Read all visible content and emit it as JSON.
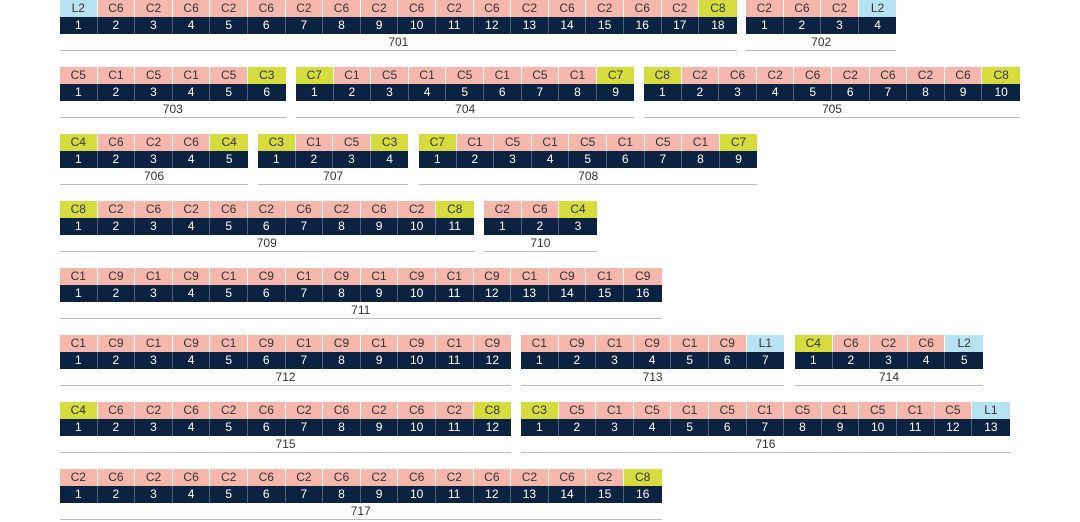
{
  "colors": {
    "C": "#f5b7ac",
    "Y": "#d6dc3d",
    "B": "#b7e2f1",
    "index_bg": "#0b2240"
  },
  "groups": [
    {
      "label": "701",
      "cells": [
        "L2",
        "C6",
        "C2",
        "C6",
        "C2",
        "C6",
        "C2",
        "C6",
        "C2",
        "C6",
        "C2",
        "C6",
        "C2",
        "C6",
        "C2",
        "C6",
        "C2",
        "C8"
      ],
      "types": [
        "B",
        "C",
        "C",
        "C",
        "C",
        "C",
        "C",
        "C",
        "C",
        "C",
        "C",
        "C",
        "C",
        "C",
        "C",
        "C",
        "C",
        "Y"
      ],
      "indices": [
        "1",
        "2",
        "3",
        "4",
        "5",
        "6",
        "7",
        "8",
        "9",
        "10",
        "11",
        "12",
        "13",
        "14",
        "15",
        "16",
        "17",
        "18"
      ]
    },
    {
      "label": "702",
      "cells": [
        "C2",
        "C6",
        "C2",
        "L2"
      ],
      "types": [
        "C",
        "C",
        "C",
        "B"
      ],
      "indices": [
        "1",
        "2",
        "3",
        "4"
      ]
    },
    {
      "label": "703",
      "cells": [
        "C5",
        "C1",
        "C5",
        "C1",
        "C5",
        "C3"
      ],
      "types": [
        "C",
        "C",
        "C",
        "C",
        "C",
        "Y"
      ],
      "indices": [
        "1",
        "2",
        "3",
        "4",
        "5",
        "6"
      ]
    },
    {
      "label": "704",
      "cells": [
        "C7",
        "C1",
        "C5",
        "C1",
        "C5",
        "C1",
        "C5",
        "C1",
        "C7"
      ],
      "types": [
        "Y",
        "C",
        "C",
        "C",
        "C",
        "C",
        "C",
        "C",
        "Y"
      ],
      "indices": [
        "1",
        "2",
        "3",
        "4",
        "5",
        "6",
        "7",
        "8",
        "9"
      ]
    },
    {
      "label": "705",
      "cells": [
        "C8",
        "C2",
        "C6",
        "C2",
        "C6",
        "C2",
        "C6",
        "C2",
        "C6",
        "C8"
      ],
      "types": [
        "Y",
        "C",
        "C",
        "C",
        "C",
        "C",
        "C",
        "C",
        "C",
        "Y"
      ],
      "indices": [
        "1",
        "2",
        "3",
        "4",
        "5",
        "6",
        "7",
        "8",
        "9",
        "10"
      ]
    },
    {
      "label": "706",
      "cells": [
        "C4",
        "C6",
        "C2",
        "C6",
        "C4"
      ],
      "types": [
        "Y",
        "C",
        "C",
        "C",
        "Y"
      ],
      "indices": [
        "1",
        "2",
        "3",
        "4",
        "5"
      ]
    },
    {
      "label": "707",
      "cells": [
        "C3",
        "C1",
        "C5",
        "C3"
      ],
      "types": [
        "Y",
        "C",
        "C",
        "Y"
      ],
      "indices": [
        "1",
        "2",
        "3",
        "4"
      ]
    },
    {
      "label": "708",
      "cells": [
        "C7",
        "C1",
        "C5",
        "C1",
        "C5",
        "C1",
        "C5",
        "C1",
        "C7"
      ],
      "types": [
        "Y",
        "C",
        "C",
        "C",
        "C",
        "C",
        "C",
        "C",
        "Y"
      ],
      "indices": [
        "1",
        "2",
        "3",
        "4",
        "5",
        "6",
        "7",
        "8",
        "9"
      ]
    },
    {
      "label": "709",
      "cells": [
        "C8",
        "C2",
        "C6",
        "C2",
        "C6",
        "C2",
        "C6",
        "C2",
        "C6",
        "C2",
        "C8"
      ],
      "types": [
        "Y",
        "C",
        "C",
        "C",
        "C",
        "C",
        "C",
        "C",
        "C",
        "C",
        "Y"
      ],
      "indices": [
        "1",
        "2",
        "3",
        "4",
        "5",
        "6",
        "7",
        "8",
        "9",
        "10",
        "11"
      ]
    },
    {
      "label": "710",
      "cells": [
        "C2",
        "C6",
        "C4"
      ],
      "types": [
        "C",
        "C",
        "Y"
      ],
      "indices": [
        "1",
        "2",
        "3"
      ]
    },
    {
      "label": "711",
      "cells": [
        "C1",
        "C9",
        "C1",
        "C9",
        "C1",
        "C9",
        "C1",
        "C9",
        "C1",
        "C9",
        "C1",
        "C9",
        "C1",
        "C9",
        "C1",
        "C9"
      ],
      "types": [
        "C",
        "C",
        "C",
        "C",
        "C",
        "C",
        "C",
        "C",
        "C",
        "C",
        "C",
        "C",
        "C",
        "C",
        "C",
        "C"
      ],
      "indices": [
        "1",
        "2",
        "3",
        "4",
        "5",
        "6",
        "7",
        "8",
        "9",
        "10",
        "11",
        "12",
        "13",
        "14",
        "15",
        "16"
      ]
    },
    {
      "label": "712",
      "cells": [
        "C1",
        "C9",
        "C1",
        "C9",
        "C1",
        "C9",
        "C1",
        "C9",
        "C1",
        "C9",
        "C1",
        "C9"
      ],
      "types": [
        "C",
        "C",
        "C",
        "C",
        "C",
        "C",
        "C",
        "C",
        "C",
        "C",
        "C",
        "C"
      ],
      "indices": [
        "1",
        "2",
        "3",
        "4",
        "5",
        "6",
        "7",
        "8",
        "9",
        "10",
        "11",
        "12"
      ]
    },
    {
      "label": "713",
      "cells": [
        "C1",
        "C9",
        "C1",
        "C9",
        "C1",
        "C9",
        "L1"
      ],
      "types": [
        "C",
        "C",
        "C",
        "C",
        "C",
        "C",
        "B"
      ],
      "indices": [
        "1",
        "2",
        "3",
        "4",
        "5",
        "6",
        "7"
      ]
    },
    {
      "label": "714",
      "cells": [
        "C4",
        "C6",
        "C2",
        "C6",
        "L2"
      ],
      "types": [
        "Y",
        "C",
        "C",
        "C",
        "B"
      ],
      "indices": [
        "1",
        "2",
        "3",
        "4",
        "5"
      ]
    },
    {
      "label": "715",
      "cells": [
        "C4",
        "C6",
        "C2",
        "C6",
        "C2",
        "C6",
        "C2",
        "C6",
        "C2",
        "C6",
        "C2",
        "C8"
      ],
      "types": [
        "Y",
        "C",
        "C",
        "C",
        "C",
        "C",
        "C",
        "C",
        "C",
        "C",
        "C",
        "Y"
      ],
      "indices": [
        "1",
        "2",
        "3",
        "4",
        "5",
        "6",
        "7",
        "8",
        "9",
        "10",
        "11",
        "12"
      ]
    },
    {
      "label": "716",
      "cells": [
        "C3",
        "C5",
        "C1",
        "C5",
        "C1",
        "C5",
        "C1",
        "C5",
        "C1",
        "C5",
        "C1",
        "C5",
        "L1"
      ],
      "types": [
        "Y",
        "C",
        "C",
        "C",
        "C",
        "C",
        "C",
        "C",
        "C",
        "C",
        "C",
        "C",
        "B"
      ],
      "indices": [
        "1",
        "2",
        "3",
        "4",
        "5",
        "6",
        "7",
        "8",
        "9",
        "10",
        "11",
        "12",
        "13"
      ]
    },
    {
      "label": "717",
      "cells": [
        "C2",
        "C6",
        "C2",
        "C6",
        "C2",
        "C6",
        "C2",
        "C6",
        "C2",
        "C6",
        "C2",
        "C6",
        "C2",
        "C6",
        "C2",
        "C8"
      ],
      "types": [
        "C",
        "C",
        "C",
        "C",
        "C",
        "C",
        "C",
        "C",
        "C",
        "C",
        "C",
        "C",
        "C",
        "C",
        "C",
        "Y"
      ],
      "indices": [
        "1",
        "2",
        "3",
        "4",
        "5",
        "6",
        "7",
        "8",
        "9",
        "10",
        "11",
        "12",
        "13",
        "14",
        "15",
        "16"
      ]
    }
  ]
}
